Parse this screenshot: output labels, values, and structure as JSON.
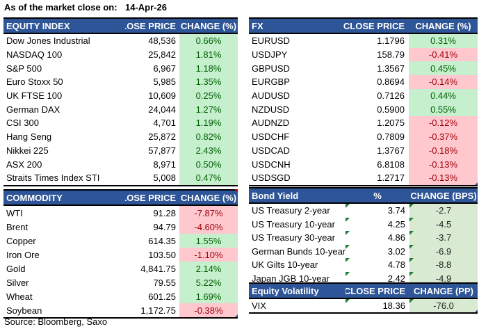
{
  "meta": {
    "as_of_label": "As of the market close on:",
    "as_of_date": "14-Apr-26",
    "source": "Source: Bloomberg, Saxo"
  },
  "colors": {
    "header_bg": "#2E5597",
    "positive_bg": "#C6EFCE",
    "positive_text": "#006100",
    "negative_bg": "#FFC7CE",
    "negative_text": "#9C0006",
    "bps_change_bg": "#D9EAD3",
    "flag_marker_green": "#1E7B34",
    "comment_marker_red": "#C00000",
    "note_marker_blue": "#30508C"
  },
  "tables": {
    "equity_index": {
      "headers": [
        "EQUITY INDEX",
        "CLOSE PRICE",
        "CHANGE (%)"
      ],
      "change_style": "signed",
      "rows": [
        {
          "name": "Dow Jones Industrial",
          "value": "48,536",
          "change": "0.66%",
          "dir": "up"
        },
        {
          "name": "NASDAQ 100",
          "value": "25,842",
          "change": "1.81%",
          "dir": "up"
        },
        {
          "name": "S&P 500",
          "value": "6,967",
          "change": "1.18%",
          "dir": "up"
        },
        {
          "name": "Euro Stoxx 50",
          "value": "5,985",
          "change": "1.35%",
          "dir": "up"
        },
        {
          "name": "UK FTSE 100",
          "value": "10,609",
          "change": "0.25%",
          "dir": "up"
        },
        {
          "name": "German DAX",
          "value": "24,044",
          "change": "1.27%",
          "dir": "up"
        },
        {
          "name": "CSI 300",
          "value": "4,701",
          "change": "1.19%",
          "dir": "up"
        },
        {
          "name": "Hang Seng",
          "value": "25,872",
          "change": "0.82%",
          "dir": "up"
        },
        {
          "name": "Nikkei 225",
          "value": "57,877",
          "change": "2.43%",
          "dir": "up"
        },
        {
          "name": "ASX 200",
          "value": "8,971",
          "change": "0.50%",
          "dir": "up"
        },
        {
          "name": "Straits Times Index STI",
          "value": "5,008",
          "change": "0.47%",
          "dir": "up"
        }
      ]
    },
    "fx": {
      "headers": [
        "FX",
        "CLOSE PRICE",
        "CHANGE (%)"
      ],
      "change_style": "signed",
      "rows": [
        {
          "name": "EURUSD",
          "value": "1.1796",
          "change": "0.31%",
          "dir": "up"
        },
        {
          "name": "USDJPY",
          "value": "158.79",
          "change": "-0.41%",
          "dir": "down"
        },
        {
          "name": "GBPUSD",
          "value": "1.3567",
          "change": "0.45%",
          "dir": "up"
        },
        {
          "name": "EURGBP",
          "value": "0.8694",
          "change": "-0.14%",
          "dir": "down"
        },
        {
          "name": "AUDUSD",
          "value": "0.7126",
          "change": "0.44%",
          "dir": "up"
        },
        {
          "name": "NZDUSD",
          "value": "0.5900",
          "change": "0.55%",
          "dir": "up"
        },
        {
          "name": "AUDNZD",
          "value": "1.2075",
          "change": "-0.12%",
          "dir": "down"
        },
        {
          "name": "USDCHF",
          "value": "0.7809",
          "change": "-0.37%",
          "dir": "down"
        },
        {
          "name": "USDCAD",
          "value": "1.3767",
          "change": "-0.18%",
          "dir": "down"
        },
        {
          "name": "USDCNH",
          "value": "6.8108",
          "change": "-0.13%",
          "dir": "down"
        },
        {
          "name": "USDSGD",
          "value": "1.2717",
          "change": "-0.13%",
          "dir": "down",
          "note_marker": true
        }
      ]
    },
    "commodity": {
      "headers": [
        "COMMODITY",
        "CLOSE PRICE",
        "CHANGE (%)"
      ],
      "change_style": "signed",
      "header_marker": true,
      "rows": [
        {
          "name": "WTI",
          "value": "91.28",
          "change": "-7.87%",
          "dir": "down"
        },
        {
          "name": "Brent",
          "value": "94.79",
          "change": "-4.60%",
          "dir": "down"
        },
        {
          "name": "Copper",
          "value": "614.35",
          "change": "1.55%",
          "dir": "up"
        },
        {
          "name": "Iron Ore",
          "value": "103.50",
          "change": "-1.10%",
          "dir": "down"
        },
        {
          "name": "Gold",
          "value": "4,841.75",
          "change": "2.14%",
          "dir": "up"
        },
        {
          "name": "Silver",
          "value": "79.55",
          "change": "5.22%",
          "dir": "up"
        },
        {
          "name": "Wheat",
          "value": "601.25",
          "change": "1.69%",
          "dir": "up"
        },
        {
          "name": "Soybean",
          "value": "1,172.75",
          "change": "-0.38%",
          "dir": "down",
          "note_marker": true
        }
      ]
    },
    "bond_yield": {
      "headers": [
        "Bond Yield",
        "%",
        "CHANGE (BPS)"
      ],
      "change_style": "muted",
      "corner_markers": true,
      "rows": [
        {
          "name": "US Treasury 2-year",
          "value": "3.74",
          "change": "-2.7",
          "dir": "down"
        },
        {
          "name": "US Treasury 10-year",
          "value": "4.25",
          "change": "-4.5",
          "dir": "down"
        },
        {
          "name": "US Treasury 30-year",
          "value": "4.86",
          "change": "-3.7",
          "dir": "down"
        },
        {
          "name": "German Bunds 10-year",
          "value": "3.02",
          "change": "-6.9",
          "dir": "down"
        },
        {
          "name": "UK Gilts 10-year",
          "value": "4.78",
          "change": "-8.8",
          "dir": "down"
        },
        {
          "name": "Japan JGB 10-year",
          "value": "2.42",
          "change": "-4.9",
          "dir": "down"
        }
      ]
    },
    "equity_volatility": {
      "headers": [
        "Equity Volatility",
        "CLOSE PRICE",
        "CHANGE (PP)"
      ],
      "change_style": "muted",
      "corner_markers": true,
      "rows": [
        {
          "name": "VIX",
          "value": "18.36",
          "change": "-76.0",
          "dir": "down",
          "note_marker": true
        }
      ]
    }
  }
}
